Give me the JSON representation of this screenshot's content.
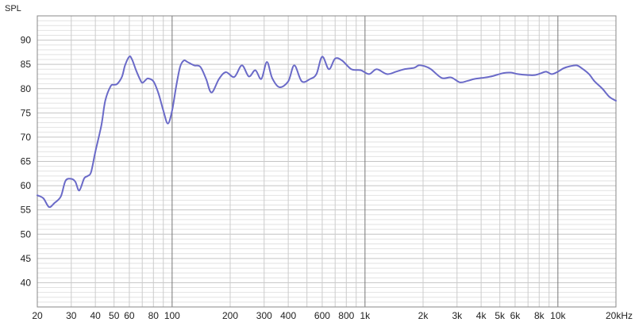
{
  "chart_data": {
    "type": "line",
    "ylabel": "SPL",
    "x_scale": "log",
    "xlim": [
      20,
      20000
    ],
    "ylim": [
      35,
      95
    ],
    "grid": true,
    "x_ticks": [
      {
        "value": 20,
        "label": "20"
      },
      {
        "value": 30,
        "label": "30"
      },
      {
        "value": 40,
        "label": "40"
      },
      {
        "value": 50,
        "label": "50"
      },
      {
        "value": 60,
        "label": "60"
      },
      {
        "value": 80,
        "label": "80"
      },
      {
        "value": 100,
        "label": "100"
      },
      {
        "value": 200,
        "label": "200"
      },
      {
        "value": 300,
        "label": "300"
      },
      {
        "value": 400,
        "label": "400"
      },
      {
        "value": 600,
        "label": "600"
      },
      {
        "value": 800,
        "label": "800"
      },
      {
        "value": 1000,
        "label": "1k"
      },
      {
        "value": 2000,
        "label": "2k"
      },
      {
        "value": 3000,
        "label": "3k"
      },
      {
        "value": 4000,
        "label": "4k"
      },
      {
        "value": 5000,
        "label": "5k"
      },
      {
        "value": 6000,
        "label": "6k"
      },
      {
        "value": 8000,
        "label": "8k"
      },
      {
        "value": 10000,
        "label": "10k"
      },
      {
        "value": 20000,
        "label": "20kHz"
      }
    ],
    "y_ticks": [
      {
        "value": 40,
        "label": "40"
      },
      {
        "value": 45,
        "label": "45"
      },
      {
        "value": 50,
        "label": "50"
      },
      {
        "value": 55,
        "label": "55"
      },
      {
        "value": 60,
        "label": "60"
      },
      {
        "value": 65,
        "label": "65"
      },
      {
        "value": 70,
        "label": "70"
      },
      {
        "value": 75,
        "label": "75"
      },
      {
        "value": 80,
        "label": "80"
      },
      {
        "value": 85,
        "label": "85"
      },
      {
        "value": 90,
        "label": "90"
      }
    ],
    "series": [
      {
        "color": "#6a6ac8",
        "x": [
          20,
          21.5,
          23,
          24.5,
          26.5,
          28,
          30,
          31.5,
          33,
          35,
          36.5,
          38,
          40,
          43,
          45,
          48,
          50,
          52,
          55,
          57,
          60,
          62,
          65,
          68,
          70,
          73,
          75,
          80,
          85,
          90,
          95,
          100,
          105,
          110,
          115,
          120,
          130,
          140,
          150,
          160,
          175,
          190,
          210,
          230,
          250,
          270,
          290,
          310,
          330,
          360,
          400,
          430,
          470,
          520,
          560,
          600,
          650,
          700,
          760,
          850,
          950,
          1050,
          1150,
          1300,
          1450,
          1600,
          1800,
          1900,
          2050,
          2200,
          2500,
          2800,
          3100,
          3400,
          3700,
          4200,
          4600,
          5200,
          5700,
          6200,
          7000,
          7600,
          8200,
          8700,
          9300,
          10000,
          10700,
          11500,
          12500,
          13300,
          14500,
          15500,
          17000,
          18500,
          20000
        ],
        "values": [
          58.0,
          57.4,
          55.6,
          56.4,
          57.8,
          61.0,
          61.4,
          60.8,
          59.0,
          61.5,
          62.0,
          62.8,
          67.0,
          72.5,
          77.5,
          80.5,
          80.8,
          81.0,
          82.5,
          84.8,
          86.6,
          86.0,
          83.8,
          82.0,
          81.2,
          81.8,
          82.1,
          81.5,
          79.0,
          75.5,
          72.8,
          75.5,
          80.5,
          84.5,
          85.8,
          85.5,
          84.8,
          84.5,
          82.0,
          79.2,
          82.0,
          83.4,
          82.4,
          84.8,
          82.5,
          83.8,
          82.0,
          85.5,
          82.2,
          80.3,
          81.5,
          84.8,
          81.5,
          82.0,
          83.0,
          86.6,
          84.0,
          86.2,
          85.8,
          84.0,
          83.8,
          83.0,
          84.0,
          83.0,
          83.5,
          84.0,
          84.3,
          84.8,
          84.6,
          84.0,
          82.2,
          82.3,
          81.3,
          81.6,
          82.0,
          82.3,
          82.6,
          83.2,
          83.3,
          83.0,
          82.8,
          82.8,
          83.2,
          83.5,
          83.0,
          83.5,
          84.2,
          84.6,
          84.8,
          84.2,
          83.0,
          81.5,
          80.0,
          78.3,
          77.5
        ]
      }
    ]
  }
}
